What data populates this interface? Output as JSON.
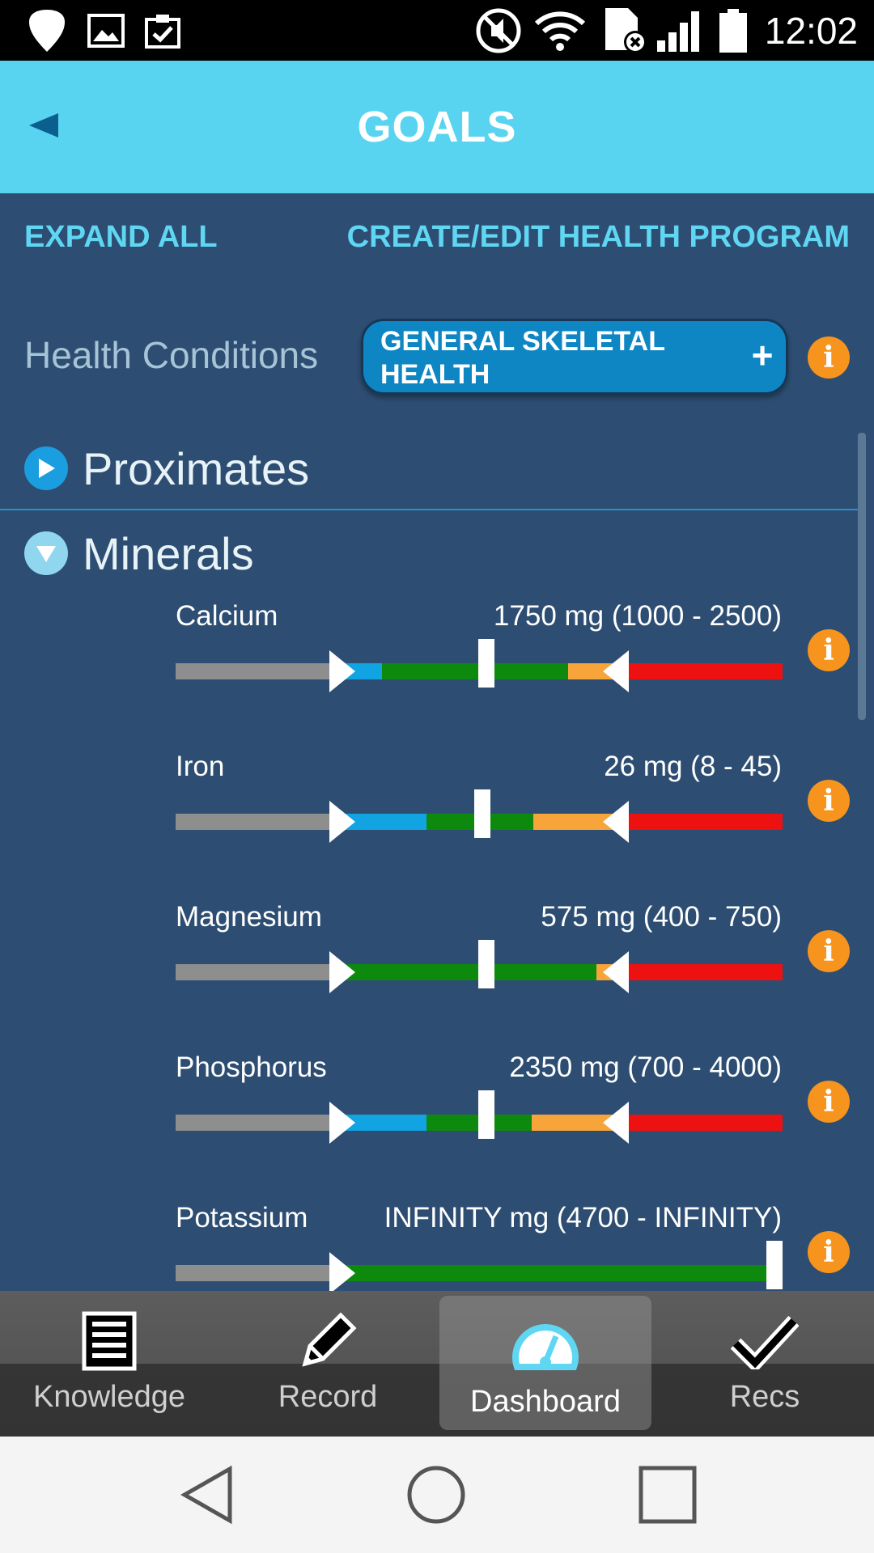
{
  "status_bar": {
    "time": "12:02",
    "icons": [
      "shield-icon",
      "image-icon",
      "clipboard-check-icon",
      "mute-icon",
      "wifi-icon",
      "sim-no-icon",
      "signal-icon",
      "battery-icon"
    ]
  },
  "header": {
    "title": "GOALS",
    "back_icon": "back-arrow-icon"
  },
  "actions": {
    "expand_all": "EXPAND ALL",
    "create_edit": "CREATE/EDIT HEALTH PROGRAM"
  },
  "health_conditions": {
    "label": "Health Conditions",
    "selected": "GENERAL SKELETAL HEALTH",
    "add_symbol": "+",
    "info": "i"
  },
  "sections": [
    {
      "label": "Proximates",
      "expanded": false
    },
    {
      "label": "Minerals",
      "expanded": true
    }
  ],
  "nutrients": [
    {
      "name": "Calcium",
      "value": "1750 mg (1000 - 2500)",
      "info": "i"
    },
    {
      "name": "Iron",
      "value": "26 mg (8 - 45)",
      "info": "i"
    },
    {
      "name": "Magnesium",
      "value": "575 mg (400 - 750)",
      "info": "i"
    },
    {
      "name": "Phosphorus",
      "value": "2350 mg (700 - 4000)",
      "info": "i"
    },
    {
      "name": "Potassium",
      "value": "INFINITY mg (4700 - INFINITY)",
      "info": "i"
    }
  ],
  "bottom_nav": [
    {
      "label": "Knowledge",
      "icon": "list-icon",
      "active": false
    },
    {
      "label": "Record",
      "icon": "pencil-icon",
      "active": false
    },
    {
      "label": "Dashboard",
      "icon": "gauge-icon",
      "active": true
    },
    {
      "label": "Recs",
      "icon": "check-icon",
      "active": false
    }
  ],
  "colors": {
    "background": "#2d4e72",
    "header": "#58d4f0",
    "accent_text": "#5fd6f2",
    "pill": "#0e86c4",
    "info": "#f7941d",
    "bar_gray": "#8e8e8e",
    "bar_blue": "#12a3e3",
    "bar_green": "#0d8a0d",
    "bar_orange": "#f7a43a",
    "bar_red": "#ee1111"
  }
}
